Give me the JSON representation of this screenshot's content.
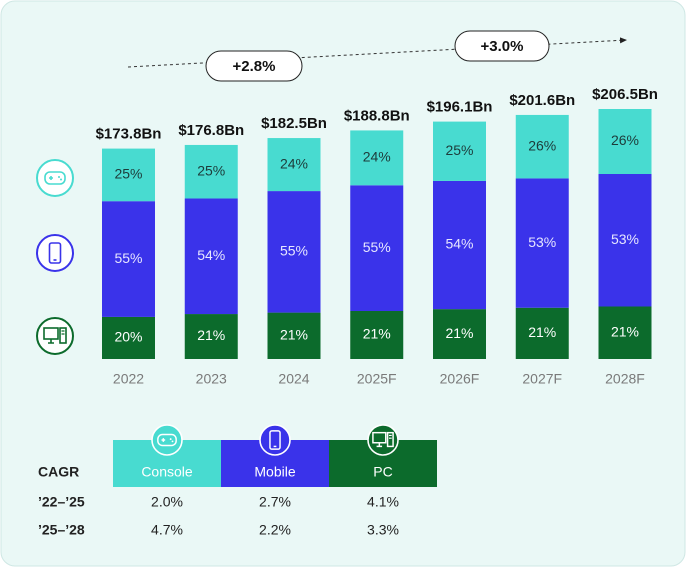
{
  "chart_data": {
    "type": "stacked_bar",
    "categories": [
      "2022",
      "2023",
      "2024",
      "2025F",
      "2026F",
      "2027F",
      "2028F"
    ],
    "totals": {
      "values": [
        173.8,
        176.8,
        182.5,
        188.8,
        196.1,
        201.6,
        206.5
      ],
      "value_labels": [
        "$173.8Bn",
        "$176.8Bn",
        "$182.5Bn",
        "$188.8Bn",
        "$196.1Bn",
        "$201.6Bn",
        "$206.5Bn"
      ]
    },
    "series": [
      {
        "name": "PC",
        "color": "#0c6b2c",
        "values": [
          20,
          21,
          21,
          21,
          21,
          21,
          21
        ],
        "value_labels": [
          "20%",
          "21%",
          "21%",
          "21%",
          "21%",
          "21%",
          "21%"
        ]
      },
      {
        "name": "Mobile",
        "color": "#3a33ea",
        "values": [
          55,
          54,
          55,
          55,
          54,
          53,
          53
        ],
        "value_labels": [
          "55%",
          "54%",
          "55%",
          "55%",
          "54%",
          "53%",
          "53%"
        ]
      },
      {
        "name": "Console",
        "color": "#48dbd0",
        "values": [
          25,
          25,
          24,
          24,
          25,
          26,
          26
        ],
        "value_labels": [
          "25%",
          "25%",
          "24%",
          "24%",
          "25%",
          "26%",
          "26%"
        ]
      }
    ],
    "annotations": [
      "+2.8%",
      "+3.0%"
    ]
  },
  "cagr_table": {
    "title": "CAGR",
    "rows": [
      {
        "label": "’22–’25",
        "cells": [
          "2.0%",
          "2.7%",
          "4.1%"
        ]
      },
      {
        "label": "’25–’28",
        "cells": [
          "4.7%",
          "2.2%",
          "3.3%"
        ]
      }
    ]
  }
}
